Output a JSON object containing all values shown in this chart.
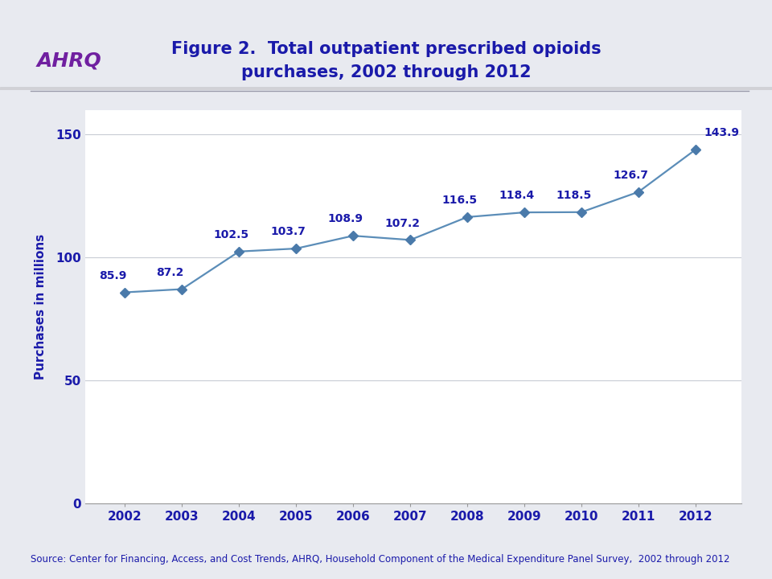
{
  "title_line1": "Figure 2.  Total outpatient prescribed opioids",
  "title_line2": "purchases, 2002 through 2012",
  "ylabel": "Purchases in millions",
  "years": [
    2002,
    2003,
    2004,
    2005,
    2006,
    2007,
    2008,
    2009,
    2010,
    2011,
    2012
  ],
  "values": [
    85.9,
    87.2,
    102.5,
    103.7,
    108.9,
    107.2,
    116.5,
    118.4,
    118.5,
    126.7,
    143.9
  ],
  "ylim": [
    0,
    160
  ],
  "yticks": [
    0,
    50,
    100,
    150
  ],
  "line_color": "#5b8db8",
  "marker_color": "#4a7aaa",
  "title_color": "#1a1aaa",
  "axis_label_color": "#1a1aaa",
  "tick_label_color": "#1a1aaa",
  "annotation_color": "#1a1aaa",
  "grid_color": "#c8ccd4",
  "header_bg_color": "#d8dce4",
  "plot_bg_color": "#ffffff",
  "body_bg_color": "#e8eaf0",
  "source_text": "Source: Center for Financing, Access, and Cost Trends, AHRQ, Household Component of the Medical Expenditure Panel Survey,  2002 through 2012",
  "source_color": "#1a1aaa",
  "title_fontsize": 15,
  "axis_label_fontsize": 11,
  "tick_fontsize": 11,
  "annotation_fontsize": 10,
  "source_fontsize": 8.5
}
